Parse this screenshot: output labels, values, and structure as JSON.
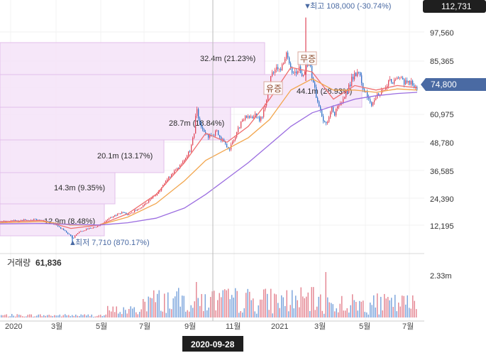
{
  "chart_data": {
    "type": "candlestick",
    "y_axis": {
      "ticks": [
        "97,560",
        "85,365",
        "60,975",
        "48,780",
        "36,585",
        "24,390",
        "12,195"
      ],
      "scale": "linear",
      "range": [
        0,
        112731
      ]
    },
    "x_axis": {
      "ticks": [
        "2020",
        "3월",
        "5월",
        "7월",
        "9월",
        "11월",
        "2021",
        "3월",
        "5월",
        "7월"
      ]
    },
    "badges": {
      "top": "112,731",
      "current": "74,800",
      "crosshair_date": "2020-09-28"
    },
    "annotations": {
      "high": "최고 108,000 (-30.74%)",
      "high_value": 108000,
      "low": "최저 7,710 (870.17%)",
      "low_value": 7710
    },
    "events": [
      "유증",
      "무증"
    ],
    "volume_profile": [
      {
        "label": "44.1m (28.93%)",
        "volume_m": 44.1,
        "percent": 28.93
      },
      {
        "label": "32.4m (21.23%)",
        "volume_m": 32.4,
        "percent": 21.23
      },
      {
        "label": "28.7m (18.84%)",
        "volume_m": 28.7,
        "percent": 18.84
      },
      {
        "label": "20.1m (13.17%)",
        "volume_m": 20.1,
        "percent": 13.17
      },
      {
        "label": "14.3m (9.35%)",
        "volume_m": 14.3,
        "percent": 9.35
      },
      {
        "label": "12.9m (8.48%)",
        "volume_m": 12.9,
        "percent": 8.48
      }
    ],
    "volume_panel": {
      "title": "거래량",
      "value": "61,836",
      "max_label": "2.33m"
    },
    "price_path": [
      [
        0,
        18000
      ],
      [
        8,
        18200
      ],
      [
        16,
        18500
      ],
      [
        24,
        18000
      ],
      [
        32,
        18800
      ],
      [
        40,
        18300
      ],
      [
        48,
        19000
      ],
      [
        56,
        18500
      ],
      [
        64,
        18200
      ],
      [
        72,
        17500
      ],
      [
        80,
        16000
      ],
      [
        88,
        14500
      ],
      [
        96,
        12500
      ],
      [
        102,
        10500
      ],
      [
        108,
        13000
      ],
      [
        116,
        14000
      ],
      [
        124,
        15000
      ],
      [
        132,
        15500
      ],
      [
        140,
        16500
      ],
      [
        148,
        18000
      ],
      [
        156,
        20000
      ],
      [
        164,
        21000
      ],
      [
        172,
        22000
      ],
      [
        180,
        21000
      ],
      [
        188,
        22500
      ],
      [
        196,
        24000
      ],
      [
        204,
        25500
      ],
      [
        212,
        28000
      ],
      [
        220,
        30000
      ],
      [
        228,
        33000
      ],
      [
        236,
        37000
      ],
      [
        244,
        40000
      ],
      [
        252,
        42000
      ],
      [
        260,
        45000
      ],
      [
        268,
        50000
      ],
      [
        273,
        57000
      ],
      [
        276,
        70000
      ],
      [
        280,
        62000
      ],
      [
        286,
        58000
      ],
      [
        292,
        56000
      ],
      [
        298,
        55000
      ],
      [
        304,
        58000
      ],
      [
        310,
        55000
      ],
      [
        316,
        52000
      ],
      [
        322,
        50000
      ],
      [
        328,
        53000
      ],
      [
        334,
        58000
      ],
      [
        340,
        62000
      ],
      [
        346,
        64000
      ],
      [
        352,
        63000
      ],
      [
        358,
        65000
      ],
      [
        364,
        63000
      ],
      [
        368,
        64000
      ],
      [
        374,
        70000
      ],
      [
        380,
        80000
      ],
      [
        386,
        86000
      ],
      [
        392,
        84000
      ],
      [
        398,
        88000
      ],
      [
        404,
        92000
      ],
      [
        410,
        85000
      ],
      [
        416,
        84000
      ],
      [
        421,
        86000
      ],
      [
        426,
        80000
      ],
      [
        431,
        87000
      ],
      [
        436,
        88000
      ],
      [
        440,
        80000
      ],
      [
        446,
        72000
      ],
      [
        452,
        66000
      ],
      [
        458,
        60000
      ],
      [
        462,
        64000
      ],
      [
        466,
        68000
      ],
      [
        470,
        65000
      ],
      [
        476,
        70000
      ],
      [
        482,
        72000
      ],
      [
        488,
        75000
      ],
      [
        494,
        80000
      ],
      [
        500,
        83000
      ],
      [
        506,
        84000
      ],
      [
        510,
        76000
      ],
      [
        516,
        74000
      ],
      [
        522,
        70000
      ],
      [
        528,
        72000
      ],
      [
        534,
        75000
      ],
      [
        540,
        76000
      ],
      [
        546,
        79000
      ],
      [
        552,
        80000
      ],
      [
        558,
        80000
      ],
      [
        564,
        81000
      ],
      [
        570,
        79000
      ],
      [
        576,
        80000
      ],
      [
        582,
        79000
      ],
      [
        588,
        76000
      ]
    ],
    "moving_averages": [
      {
        "color": "#ef6f6f",
        "points": [
          [
            0,
            18000
          ],
          [
            60,
            18500
          ],
          [
            100,
            15000
          ],
          [
            140,
            16500
          ],
          [
            180,
            21500
          ],
          [
            220,
            30000
          ],
          [
            260,
            44000
          ],
          [
            290,
            57000
          ],
          [
            320,
            53000
          ],
          [
            350,
            60000
          ],
          [
            380,
            72000
          ],
          [
            410,
            86000
          ],
          [
            440,
            84000
          ],
          [
            470,
            72000
          ],
          [
            500,
            78000
          ],
          [
            530,
            76000
          ],
          [
            560,
            78000
          ],
          [
            588,
            77000
          ]
        ]
      },
      {
        "color": "#f2a64e",
        "points": [
          [
            0,
            17500
          ],
          [
            60,
            18000
          ],
          [
            100,
            16500
          ],
          [
            140,
            16500
          ],
          [
            180,
            20000
          ],
          [
            220,
            26000
          ],
          [
            260,
            36000
          ],
          [
            290,
            45000
          ],
          [
            320,
            50000
          ],
          [
            350,
            55000
          ],
          [
            380,
            63000
          ],
          [
            410,
            76000
          ],
          [
            440,
            81000
          ],
          [
            470,
            76000
          ],
          [
            500,
            76000
          ],
          [
            530,
            75000
          ],
          [
            560,
            76500
          ],
          [
            588,
            76000
          ]
        ]
      },
      {
        "color": "#9b6de0",
        "points": [
          [
            0,
            17000
          ],
          [
            60,
            17200
          ],
          [
            100,
            16800
          ],
          [
            140,
            16500
          ],
          [
            180,
            17500
          ],
          [
            220,
            19500
          ],
          [
            260,
            24000
          ],
          [
            290,
            30000
          ],
          [
            320,
            37000
          ],
          [
            350,
            44000
          ],
          [
            380,
            52000
          ],
          [
            410,
            60000
          ],
          [
            440,
            66000
          ],
          [
            470,
            69000
          ],
          [
            500,
            72000
          ],
          [
            530,
            73500
          ],
          [
            560,
            74500
          ],
          [
            588,
            75000
          ]
        ]
      }
    ],
    "volume_bars_seed": 20200928
  }
}
